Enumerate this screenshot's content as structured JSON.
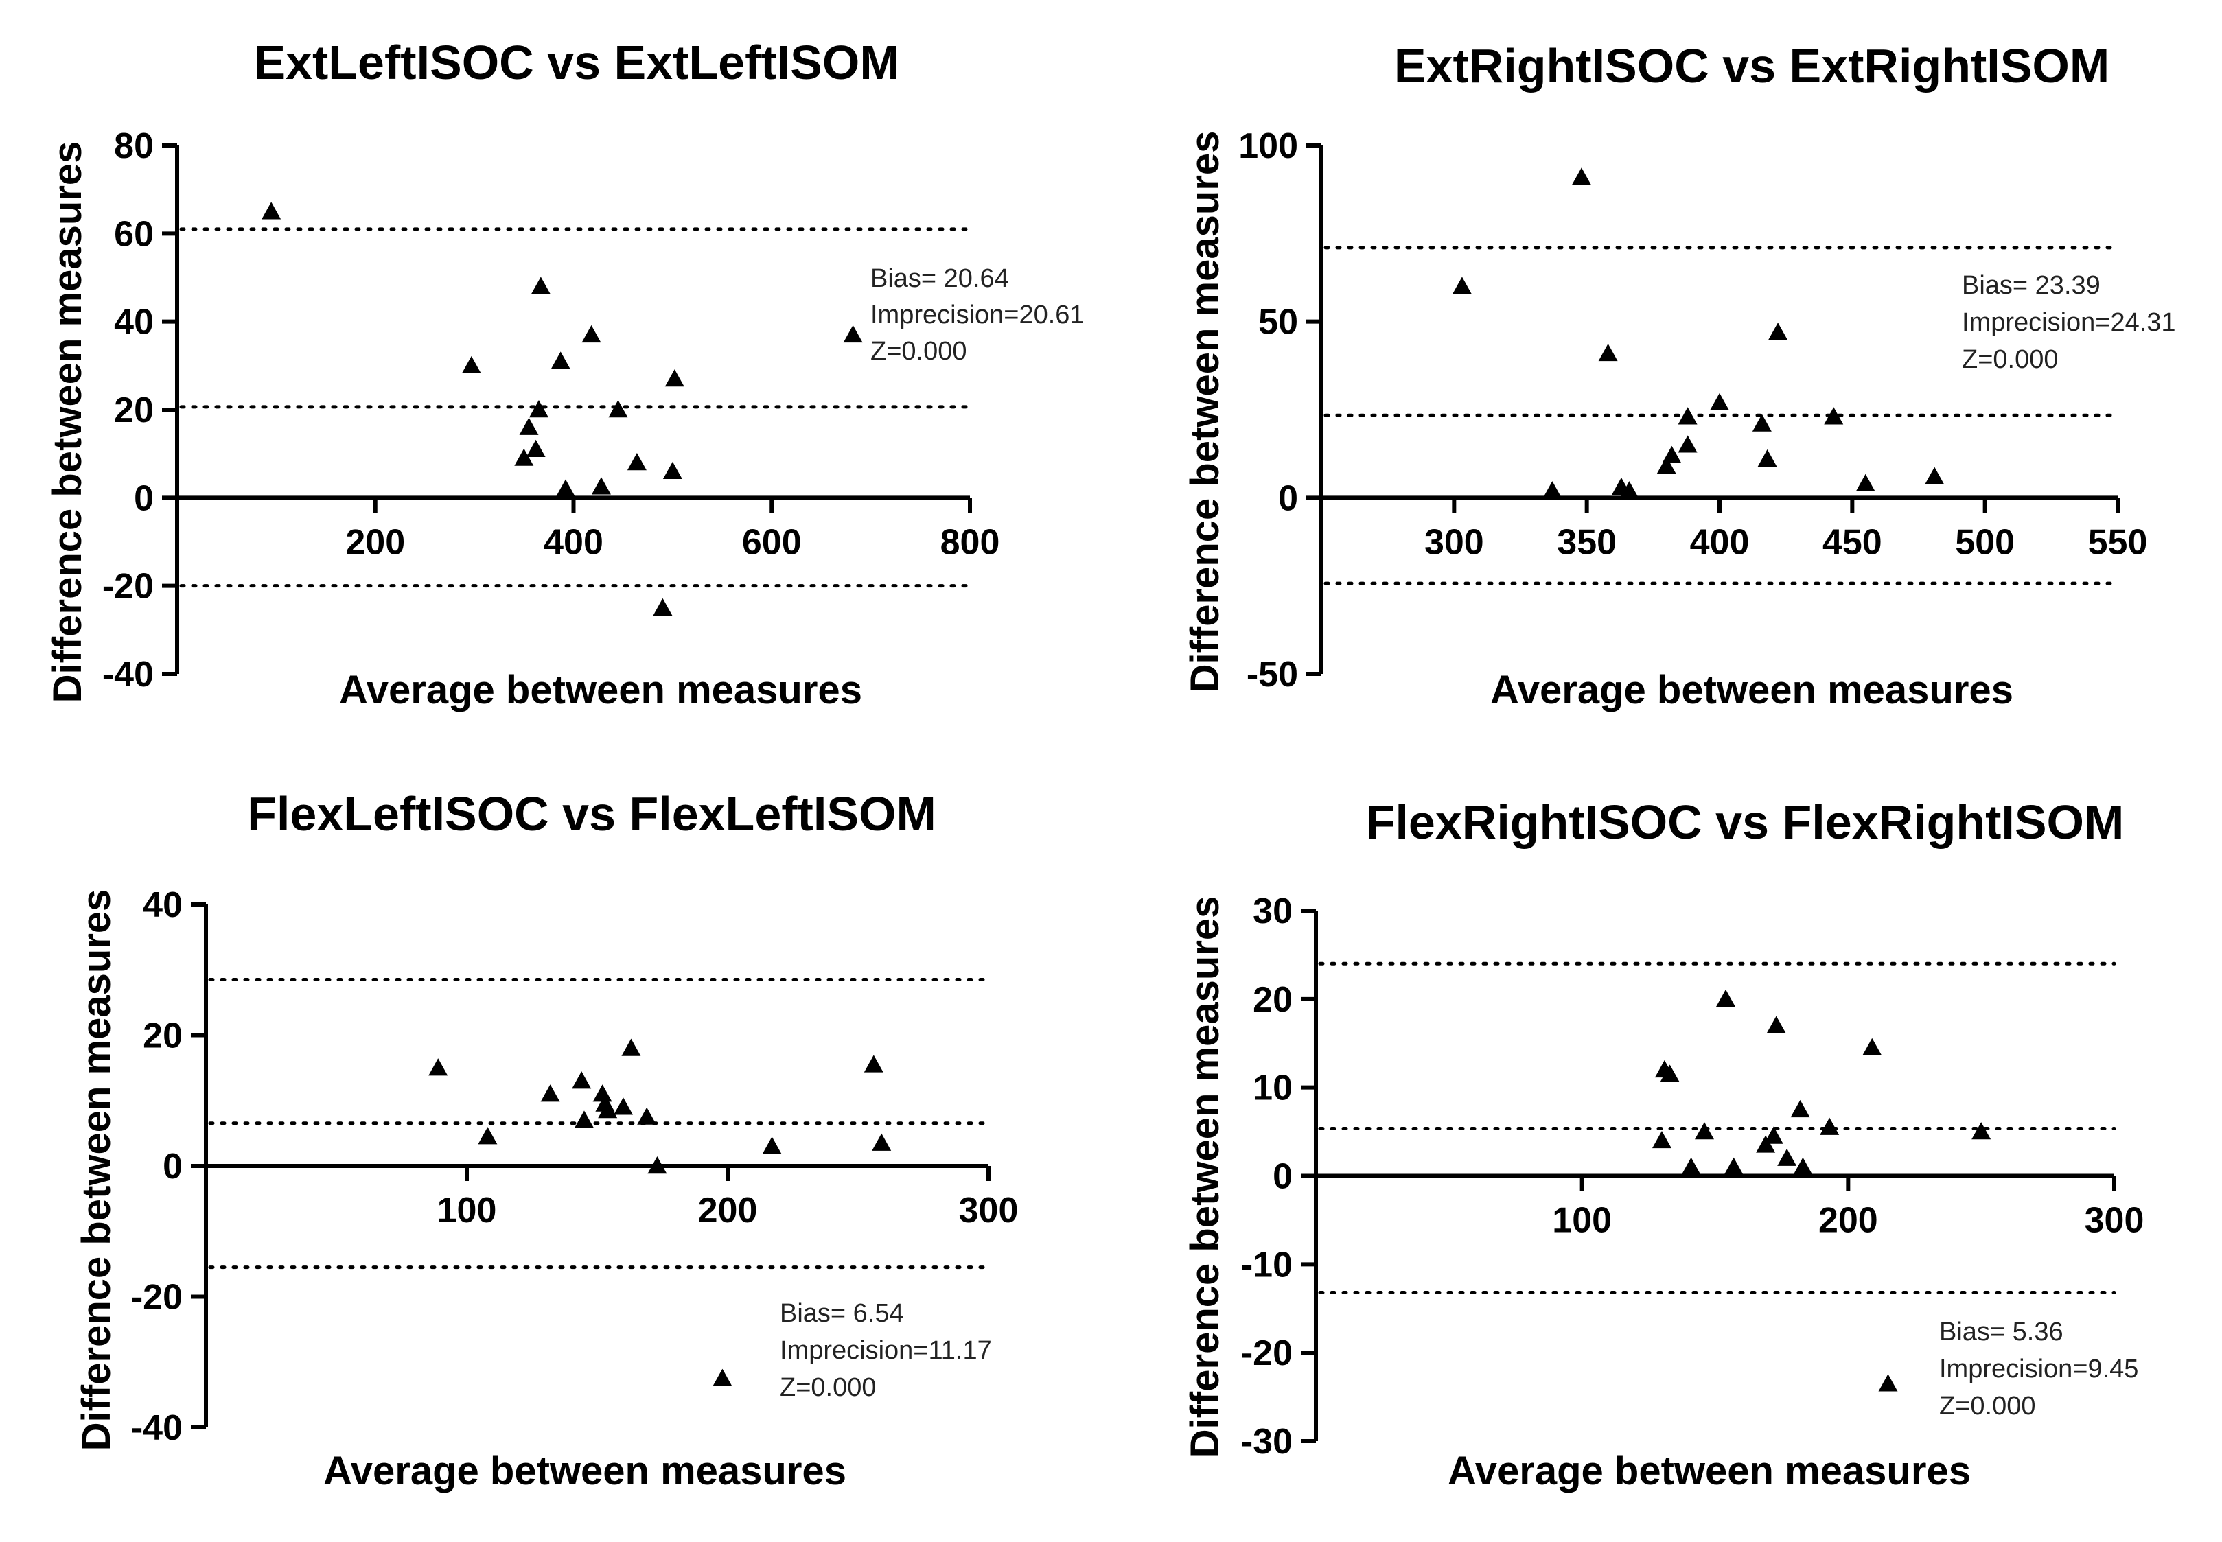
{
  "chart_data": [
    {
      "type": "scatter",
      "title": "ExtLeftISOC vs ExtLeftISOM",
      "xlabel": "Average between measures",
      "ylabel": "Difference between measures",
      "xlim": [
        0,
        800
      ],
      "ylim": [
        -40,
        80
      ],
      "xticks": [
        "200",
        "400",
        "600",
        "800"
      ],
      "xtick_values": [
        200,
        400,
        600,
        800
      ],
      "yticks": [
        "80",
        "60",
        "40",
        "20",
        "0",
        "-20",
        "-40"
      ],
      "ytick_values": [
        80,
        60,
        40,
        20,
        0,
        -20,
        -40
      ],
      "reference_lines": [
        61,
        20.64,
        -20
      ],
      "stats": [
        "Bias= 20.64",
        "Imprecision=20.61",
        "Z=0.000"
      ],
      "points": [
        [
          95,
          65
        ],
        [
          297,
          30
        ],
        [
          350,
          9
        ],
        [
          355,
          16
        ],
        [
          362,
          11
        ],
        [
          365,
          20
        ],
        [
          367,
          48
        ],
        [
          387,
          31
        ],
        [
          392,
          2
        ],
        [
          418,
          37
        ],
        [
          428,
          2.5
        ],
        [
          445,
          20
        ],
        [
          464,
          8
        ],
        [
          490,
          -25
        ],
        [
          500,
          6
        ],
        [
          502,
          27
        ],
        [
          682,
          37
        ]
      ]
    },
    {
      "type": "scatter",
      "title": "ExtRightISOC vs ExtRightISOM",
      "xlabel": "Average between measures",
      "ylabel": "Difference between measures",
      "xlim": [
        250,
        550
      ],
      "ylim": [
        -50,
        100
      ],
      "xticks": [
        "300",
        "350",
        "400",
        "450",
        "500",
        "550"
      ],
      "xtick_values": [
        300,
        350,
        400,
        450,
        500,
        550
      ],
      "yticks": [
        "100",
        "50",
        "0",
        "-50"
      ],
      "ytick_values": [
        100,
        50,
        0,
        -50
      ],
      "reference_lines": [
        71,
        23.39,
        -24.3
      ],
      "stats": [
        "Bias= 23.39",
        "Imprecision=24.31",
        "Z=0.000"
      ],
      "points": [
        [
          303,
          60
        ],
        [
          337,
          2
        ],
        [
          348,
          91
        ],
        [
          358,
          41
        ],
        [
          363,
          3
        ],
        [
          366,
          2
        ],
        [
          380,
          9
        ],
        [
          382,
          12
        ],
        [
          388,
          15
        ],
        [
          388,
          23
        ],
        [
          400,
          27
        ],
        [
          416,
          21
        ],
        [
          418,
          11
        ],
        [
          422,
          47
        ],
        [
          443,
          23
        ],
        [
          455,
          4
        ],
        [
          481,
          6
        ]
      ]
    },
    {
      "type": "scatter",
      "title": "FlexLeftISOC vs FlexLeftISOM",
      "xlabel": "Average between measures",
      "ylabel": "Difference between measures",
      "xlim": [
        0,
        300
      ],
      "ylim": [
        -40,
        40
      ],
      "xticks": [
        "100",
        "200",
        "300"
      ],
      "xtick_values": [
        100,
        200,
        300
      ],
      "yticks": [
        "40",
        "20",
        "0",
        "-20",
        "-40"
      ],
      "ytick_values": [
        40,
        20,
        0,
        -20,
        -40
      ],
      "reference_lines": [
        28.5,
        6.54,
        -15.5
      ],
      "stats": [
        "Bias= 6.54",
        "Imprecision=11.17",
        "Z=0.000"
      ],
      "points": [
        [
          89,
          15
        ],
        [
          108,
          4.5
        ],
        [
          132,
          11
        ],
        [
          144,
          13
        ],
        [
          145,
          7
        ],
        [
          152,
          11
        ],
        [
          153,
          9.5
        ],
        [
          154,
          8.5
        ],
        [
          160,
          9
        ],
        [
          163,
          18
        ],
        [
          169,
          7.5
        ],
        [
          173,
          0
        ],
        [
          198,
          -32.5
        ],
        [
          217,
          3
        ],
        [
          256,
          15.5
        ],
        [
          259,
          3.5
        ]
      ]
    },
    {
      "type": "scatter",
      "title": "FlexRightISOC vs FlexRightISOM",
      "xlabel": "Average between measures",
      "ylabel": "Difference between measures",
      "xlim": [
        0,
        300
      ],
      "ylim": [
        -30,
        30
      ],
      "xticks": [
        "100",
        "200",
        "300"
      ],
      "xtick_values": [
        100,
        200,
        300
      ],
      "yticks": [
        "30",
        "20",
        "10",
        "0",
        "-10",
        "-20",
        "-30"
      ],
      "ytick_values": [
        30,
        20,
        10,
        0,
        -10,
        -20,
        -30
      ],
      "reference_lines": [
        24,
        5.36,
        -13.2
      ],
      "stats": [
        "Bias= 5.36",
        "Imprecision=9.45",
        "Z=0.000"
      ],
      "points": [
        [
          130,
          4
        ],
        [
          131,
          12
        ],
        [
          133,
          11.5
        ],
        [
          141,
          1
        ],
        [
          146,
          5
        ],
        [
          154,
          20
        ],
        [
          157,
          1
        ],
        [
          169,
          3.5
        ],
        [
          172,
          4.5
        ],
        [
          173,
          17
        ],
        [
          177,
          2
        ],
        [
          182,
          7.5
        ],
        [
          183,
          1
        ],
        [
          193,
          5.5
        ],
        [
          209,
          14.5
        ],
        [
          215,
          -23.5
        ],
        [
          250,
          5
        ]
      ]
    }
  ]
}
